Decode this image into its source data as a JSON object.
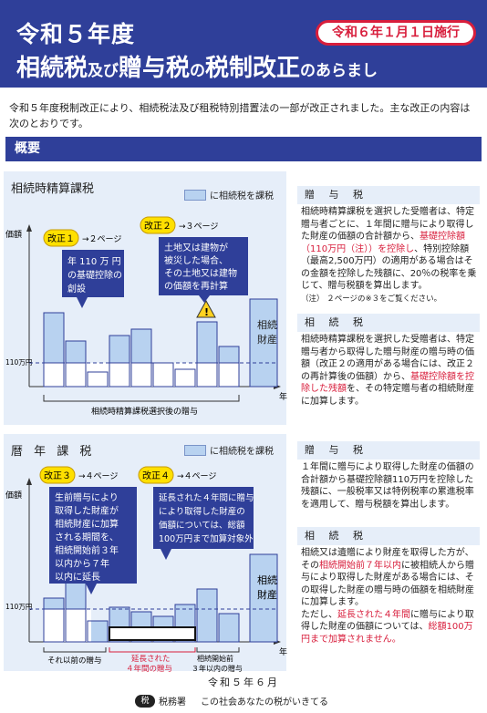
{
  "banner": {
    "title_top": "令和５年度",
    "badge": "令和６年１月１日施行",
    "title_main_1": "相続税",
    "title_main_2": "及び",
    "title_main_3": "贈与税",
    "title_main_4": "の",
    "title_main_5": "税制改正",
    "title_main_6": "のあらまし"
  },
  "intro": "令和５年度税制改正により、相続税法及び租税特別措置法の一部が改正されました。主な改正の内容は次のとおりです。",
  "section_title": "概要",
  "legend_label": "に相続税を課税",
  "panel1": {
    "title": "相続時精算課税",
    "kaisei1_badge": "改正１",
    "kaisei1_ref": "→２ページ",
    "kaisei1_text_1": "年 110 万 円",
    "kaisei1_text_2": "の基礎控除の",
    "kaisei1_text_3": "創設",
    "kaisei2_badge": "改正２",
    "kaisei2_ref": "→３ページ",
    "kaisei2_text_1": "土地又は建物が",
    "kaisei2_text_2": "被災した場合、",
    "kaisei2_text_3": "その土地又は建物",
    "kaisei2_text_4": "の価額を再計算",
    "y_label": "価額",
    "y_tick": "110万円",
    "x_label": "年",
    "estate_1": "相続",
    "estate_2": "財産",
    "bottom_label": "相続時精算課税選択後の贈与"
  },
  "panel2": {
    "title": "暦 年 課 税",
    "kaisei3_badge": "改正３",
    "kaisei3_ref": "→４ページ",
    "kaisei3_lines": [
      "生前贈与により",
      "取得した財産が",
      "相続財産に加算",
      "される期間を、",
      "相続開始前３年",
      "以内から７年",
      "以内に延長"
    ],
    "kaisei4_badge": "改正４",
    "kaisei4_ref": "→４ページ",
    "kaisei4_lines": [
      "延長された４年間に贈与",
      "により取得した財産の",
      "価額については、総額",
      "100万円まで加算対象外"
    ],
    "y_label": "価額",
    "y_tick": "110万円",
    "x_label": "年",
    "estate_1": "相続",
    "estate_2": "財産",
    "lbl_before": "それ以前の贈与",
    "lbl_ext_1": "延長された",
    "lbl_ext_2": "４年間の贈与",
    "lbl_last_1": "相続開始前",
    "lbl_last_2": "３年以内の贈与"
  },
  "side1": {
    "gift_head": "贈 与 税",
    "gift_p1": "相続時精算課税を選択した受贈者は、特定贈与者ごとに、１年間に贈与により取得した財産の価額の合計額から、",
    "gift_red1": "基礎控除額（110万円（注））を控除し",
    "gift_p2": "、特別控除額（最高2,500万円）の適用がある場合はその金額を控除した残額に、20％の税率を乗じて、贈与税額を算出します。",
    "gift_note": "（注） ２ページの※３をご覧ください。",
    "inh_head": "相 続 税",
    "inh_p1": "相続時精算課税を選択した受贈者は、特定贈与者から取得した贈与財産の贈与時の価額（改正２の適用がある場合には、改正２の再計算後の価額）から、",
    "inh_red1": "基礎控除額を控除した残額",
    "inh_p2": "を、その特定贈与者の相続財産に加算します。"
  },
  "side2": {
    "gift_head": "贈 与 税",
    "gift_p1": "１年間に贈与により取得した財産の価額の合計額から基礎控除額110万円を控除した残額に、一般税率又は特例税率の累進税率を適用して、贈与税額を算出します。",
    "inh_head": "相 続 税",
    "inh_p1": "相続又は遺贈により財産を取得した方が、その",
    "inh_red1": "相続開始前７年以内",
    "inh_p2": "に被相続人から贈与により取得した財産がある場合には、その取得した財産の贈与時の価額を相続財産に加算します。",
    "inh_p3": "ただし、",
    "inh_red2": "延長された４年間",
    "inh_p4": "に贈与により取得した財産の価額については、",
    "inh_red3": "総額100万円まで加算されません。"
  },
  "footer": {
    "date": "令和５年６月",
    "logo": "税",
    "agency": "税務署",
    "slogan": "この社会あなたの税がいきてる"
  }
}
